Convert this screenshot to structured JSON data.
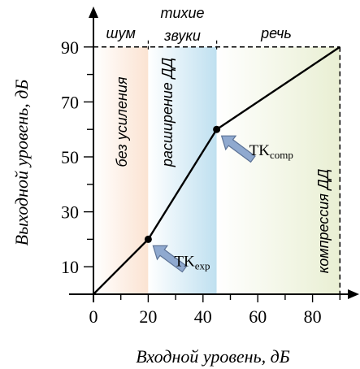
{
  "chart_data": {
    "type": "line",
    "xlabel": "Входной уровень, дБ",
    "ylabel": "Выходной уровень, дБ",
    "xlim": [
      0,
      90
    ],
    "ylim": [
      0,
      90
    ],
    "x_ticks": [
      0,
      20,
      40,
      60,
      80
    ],
    "y_ticks": [
      10,
      30,
      50,
      70,
      90
    ],
    "grid": false,
    "series": [
      {
        "x": [
          0,
          20,
          45,
          90
        ],
        "y": [
          0,
          20,
          60,
          90
        ]
      }
    ],
    "key_points": [
      {
        "x": 20,
        "y": 20,
        "label_main": "TK",
        "label_sub": "exp"
      },
      {
        "x": 45,
        "y": 60,
        "label_main": "TK",
        "label_sub": "comp"
      }
    ],
    "regions": [
      {
        "from": 0,
        "to": 20,
        "top_label": "шум",
        "side_label": "без усиления",
        "color": "#fbe3d2"
      },
      {
        "from": 20,
        "to": 45,
        "top_label_lines": [
          "тихие",
          "звуки"
        ],
        "side_label": "расширение ДД",
        "color": "#cfe8f3"
      },
      {
        "from": 45,
        "to": 90,
        "top_label": "речь",
        "side_label": "компрессия ДД",
        "color": "#eef2dc"
      }
    ],
    "colors": {
      "line": "#000000",
      "arrow_fill": "#8fa9cf",
      "arrow_stroke": "#5d7396"
    }
  }
}
